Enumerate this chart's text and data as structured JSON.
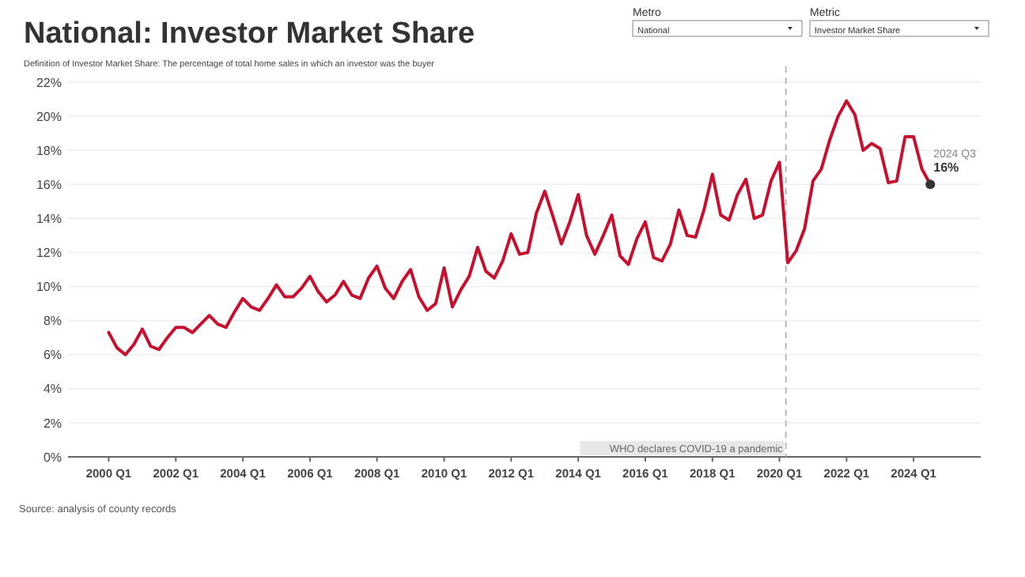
{
  "chart_data": {
    "type": "line",
    "title": "National: Investor Market Share",
    "subtitle": "Definition of Investor Market Share: The percentage of total home sales in which an investor was the buyer",
    "annotations": [
      "Metro",
      "National",
      "Metric",
      "Investor Market Share",
      "Source: analysis of county records",
      {
        "text": "2024 Q3",
        "x": "2024-07",
        "y": 16
      }
    ],
    "x": [
      "2000-01",
      "2000-04",
      "2000-07",
      "2000-10",
      "2001-01",
      "2001-04",
      "2001-07",
      "2001-10",
      "2002-01",
      "2002-04",
      "2002-07",
      "2002-10",
      "2003-01",
      "2003-04",
      "2003-07",
      "2003-10",
      "2004-01",
      "2004-04",
      "2004-07",
      "2004-10",
      "2005-01",
      "2005-04",
      "2005-07",
      "2005-10",
      "2006-01",
      "2006-04",
      "2006-07",
      "2006-10",
      "2007-01",
      "2007-04",
      "2007-07",
      "2007-10",
      "2008-01",
      "2008-04",
      "2008-07",
      "2008-10",
      "2009-01",
      "2009-04",
      "2009-07",
      "2009-10",
      "2010-01",
      "2010-04",
      "2010-07",
      "2010-10",
      "2011-01",
      "2011-04",
      "2011-07",
      "2011-10",
      "2012-01",
      "2012-04",
      "2012-07",
      "2012-10",
      "2013-01",
      "2013-04",
      "2013-07",
      "2013-10",
      "2014-01",
      "2014-04",
      "2014-07",
      "2014-10",
      "2015-01",
      "2015-04",
      "2015-07",
      "2015-10",
      "2016-01",
      "2016-04",
      "2016-07",
      "2016-10",
      "2017-01",
      "2017-04",
      "2017-07",
      "2017-10",
      "2018-01",
      "2018-04",
      "2018-07",
      "2018-10",
      "2019-01",
      "2019-04",
      "2019-07",
      "2019-10",
      "2020-01",
      "2020-04",
      "2020-07",
      "2020-10",
      "2021-01",
      "2021-04",
      "2021-07",
      "2021-10",
      "2022-01",
      "2022-04",
      "2022-07",
      "2022-10",
      "2023-01",
      "2023-04",
      "2023-07",
      "2023-10",
      "2024-01",
      "2024-04",
      "2024-07"
    ],
    "series": [
      {
        "color": "#c8102e",
        "values": [
          7.3,
          6.4,
          6.0,
          6.6,
          7.5,
          6.5,
          6.3,
          7.0,
          7.6,
          7.6,
          7.3,
          7.8,
          8.3,
          7.8,
          7.6,
          8.5,
          9.3,
          8.8,
          8.6,
          9.3,
          10.1,
          9.4,
          9.4,
          9.9,
          10.6,
          9.7,
          9.1,
          9.5,
          10.3,
          9.5,
          9.3,
          10.5,
          11.2,
          9.9,
          9.3,
          10.3,
          11.0,
          9.4,
          8.6,
          9.0,
          11.1,
          8.8,
          9.8,
          10.6,
          12.3,
          10.9,
          10.5,
          11.5,
          13.1,
          11.9,
          12.0,
          14.3,
          15.6,
          14.1,
          12.5,
          13.8,
          15.4,
          13.0,
          11.9,
          13.0,
          14.2,
          11.8,
          11.3,
          12.8,
          13.8,
          11.7,
          11.5,
          12.5,
          14.5,
          13.0,
          12.9,
          14.5,
          16.6,
          14.2,
          13.9,
          15.4,
          16.3,
          14.0,
          14.2,
          16.2,
          17.3,
          11.4,
          12.1,
          13.4,
          16.2,
          16.9,
          18.6,
          20.0,
          20.9,
          20.1,
          18.0,
          18.4,
          18.1,
          16.1,
          16.2,
          18.8,
          18.8,
          16.9,
          16
        ],
        "value_labels": [
          null,
          null,
          null,
          null,
          null,
          null,
          null,
          null,
          null,
          null,
          null,
          null,
          null,
          null,
          null,
          null,
          null,
          null,
          null,
          null,
          null,
          null,
          null,
          null,
          null,
          null,
          null,
          null,
          null,
          null,
          null,
          null,
          null,
          null,
          null,
          null,
          null,
          null,
          null,
          null,
          null,
          null,
          null,
          null,
          null,
          null,
          null,
          null,
          null,
          null,
          null,
          null,
          null,
          null,
          null,
          null,
          null,
          null,
          null,
          null,
          null,
          null,
          null,
          null,
          null,
          null,
          null,
          null,
          null,
          null,
          null,
          null,
          null,
          null,
          null,
          null,
          null,
          null,
          null,
          null,
          null,
          null,
          null,
          null,
          null,
          null,
          null,
          null,
          null,
          null,
          null,
          null,
          null,
          null,
          null,
          null,
          null,
          null,
          "16%"
        ]
      }
    ],
    "xlim": [
      "1998-10-15",
      "2026-01-01"
    ],
    "xticks": [
      {
        "value": "2000-01",
        "label": "2000 Q1"
      },
      {
        "value": "2002-01",
        "label": "2002 Q1"
      },
      {
        "value": "2004-01",
        "label": "2004 Q1"
      },
      {
        "value": "2006-01",
        "label": "2006 Q1"
      },
      {
        "value": "2008-01",
        "label": "2008 Q1"
      },
      {
        "value": "2010-01",
        "label": "2010 Q1"
      },
      {
        "value": "2012-01",
        "label": "2012 Q1"
      },
      {
        "value": "2014-01",
        "label": "2014 Q1"
      },
      {
        "value": "2016-01",
        "label": "2016 Q1"
      },
      {
        "value": "2018-01",
        "label": "2018 Q1"
      },
      {
        "value": "2020-01",
        "label": "2020 Q1"
      },
      {
        "value": "2022-01",
        "label": "2022 Q1"
      },
      {
        "value": "2024-01",
        "label": "2024 Q1"
      }
    ],
    "ylim": [
      0,
      22
    ],
    "yticks": [
      {
        "value": 0,
        "label": "0%"
      },
      {
        "value": 2,
        "label": "2%"
      },
      {
        "value": 4,
        "label": "4%"
      },
      {
        "value": 6,
        "label": "6%"
      },
      {
        "value": 8,
        "label": "8%"
      },
      {
        "value": 10,
        "label": "10%"
      },
      {
        "value": 12,
        "label": "12%"
      },
      {
        "value": 14,
        "label": "14%"
      },
      {
        "value": 16,
        "label": "16%"
      },
      {
        "value": 18,
        "label": "18%"
      },
      {
        "value": 20,
        "label": "20%"
      },
      {
        "value": 22,
        "label": "22%"
      }
    ],
    "ref_lines": [
      {
        "axis": "x",
        "value": "2020-03-11",
        "label": "WHO declares COVID-19 a pandemic",
        "color": "#aaaaaa",
        "line_style": "dashed"
      }
    ],
    "grid": "y"
  }
}
